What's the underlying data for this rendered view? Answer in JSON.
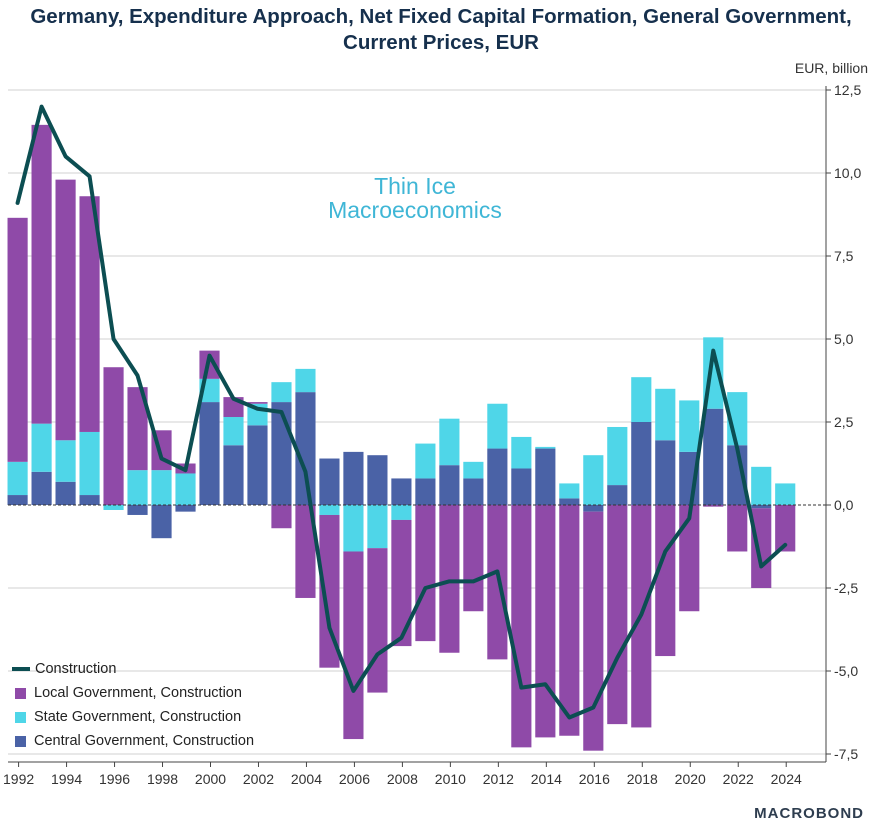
{
  "chart_data": {
    "type": "bar",
    "title": "Germany, Expenditure Approach, Net Fixed Capital Formation, General Government, Current Prices, EUR",
    "unit": "EUR, billion",
    "x": [
      1992,
      1993,
      1994,
      1995,
      1996,
      1997,
      1998,
      1999,
      2000,
      2001,
      2002,
      2003,
      2004,
      2005,
      2006,
      2007,
      2008,
      2009,
      2010,
      2011,
      2012,
      2013,
      2014,
      2015,
      2016,
      2017,
      2018,
      2019,
      2020,
      2021,
      2022,
      2023,
      2024
    ],
    "x_ticks": [
      1992,
      1994,
      1996,
      1998,
      2000,
      2002,
      2004,
      2006,
      2008,
      2010,
      2012,
      2014,
      2016,
      2018,
      2020,
      2022,
      2024
    ],
    "xlim": [
      1991.1,
      2025.2
    ],
    "ylim": [
      -7.5,
      12.5
    ],
    "y_ticks": [
      -7.5,
      -5.0,
      -2.5,
      0.0,
      2.5,
      5.0,
      7.5,
      10.0,
      12.5
    ],
    "y_tick_labels": [
      "-7,5",
      "-5,0",
      "-2,5",
      "0,0",
      "2,5",
      "5,0",
      "7,5",
      "10,0",
      "12,5"
    ],
    "stacked": true,
    "series": [
      {
        "name": "Central Government, Construction",
        "kind": "bar",
        "color": "#4a62a6",
        "values": [
          0.3,
          1.0,
          0.7,
          0.3,
          0.0,
          -0.3,
          -1.0,
          -0.2,
          3.1,
          1.8,
          2.4,
          3.1,
          3.4,
          1.4,
          1.6,
          1.5,
          0.8,
          0.8,
          1.2,
          0.8,
          1.7,
          1.1,
          1.7,
          0.2,
          -0.2,
          0.6,
          2.5,
          1.95,
          1.6,
          2.9,
          1.8,
          -0.1,
          0.0
        ]
      },
      {
        "name": "State Government, Construction",
        "kind": "bar",
        "color": "#4fd6e8",
        "values": [
          1.0,
          1.45,
          1.25,
          1.9,
          -0.15,
          1.05,
          1.05,
          0.95,
          0.7,
          0.85,
          0.65,
          0.6,
          0.7,
          -0.3,
          -1.4,
          -1.3,
          -0.45,
          1.05,
          1.4,
          0.5,
          1.35,
          0.95,
          0.05,
          0.45,
          1.5,
          1.75,
          1.35,
          1.55,
          1.55,
          2.15,
          1.6,
          1.15,
          0.65
        ]
      },
      {
        "name": "Local Government, Construction",
        "kind": "bar",
        "color": "#8f4aa8",
        "values": [
          7.35,
          9.0,
          7.85,
          7.1,
          4.15,
          2.5,
          1.2,
          0.3,
          0.85,
          0.6,
          0.05,
          -0.7,
          -2.8,
          -4.6,
          -5.65,
          -4.35,
          -3.8,
          -4.1,
          -4.45,
          -3.2,
          -4.65,
          -7.3,
          -7.0,
          -6.95,
          -7.2,
          -6.6,
          -6.7,
          -4.55,
          -3.2,
          -0.05,
          -1.4,
          -2.4,
          -1.4
        ]
      },
      {
        "name": "Construction",
        "kind": "line",
        "color": "#0c4e52",
        "values": [
          9.1,
          12.0,
          10.5,
          9.9,
          5.0,
          3.9,
          1.4,
          1.05,
          4.5,
          3.2,
          2.9,
          2.8,
          1.0,
          -3.7,
          -5.6,
          -4.5,
          -4.0,
          -2.5,
          -2.3,
          -2.3,
          -2.0,
          -5.5,
          -5.4,
          -6.4,
          -6.1,
          -4.6,
          -3.3,
          -1.4,
          -0.4,
          4.65,
          1.7,
          -1.85,
          -1.2
        ]
      }
    ],
    "legend": {
      "placement": "bottom-left",
      "entries": [
        {
          "label": "Construction",
          "type": "line",
          "color": "#0c4e52"
        },
        {
          "label": "Local Government, Construction",
          "type": "box",
          "color": "#8f4aa8"
        },
        {
          "label": "State Government, Construction",
          "type": "box",
          "color": "#4fd6e8"
        },
        {
          "label": "Central Government, Construction",
          "type": "box",
          "color": "#4a62a6"
        }
      ]
    },
    "grid": true,
    "watermark": [
      "Thin Ice",
      "Macroeconomics"
    ],
    "brand": "MACROBOND"
  }
}
